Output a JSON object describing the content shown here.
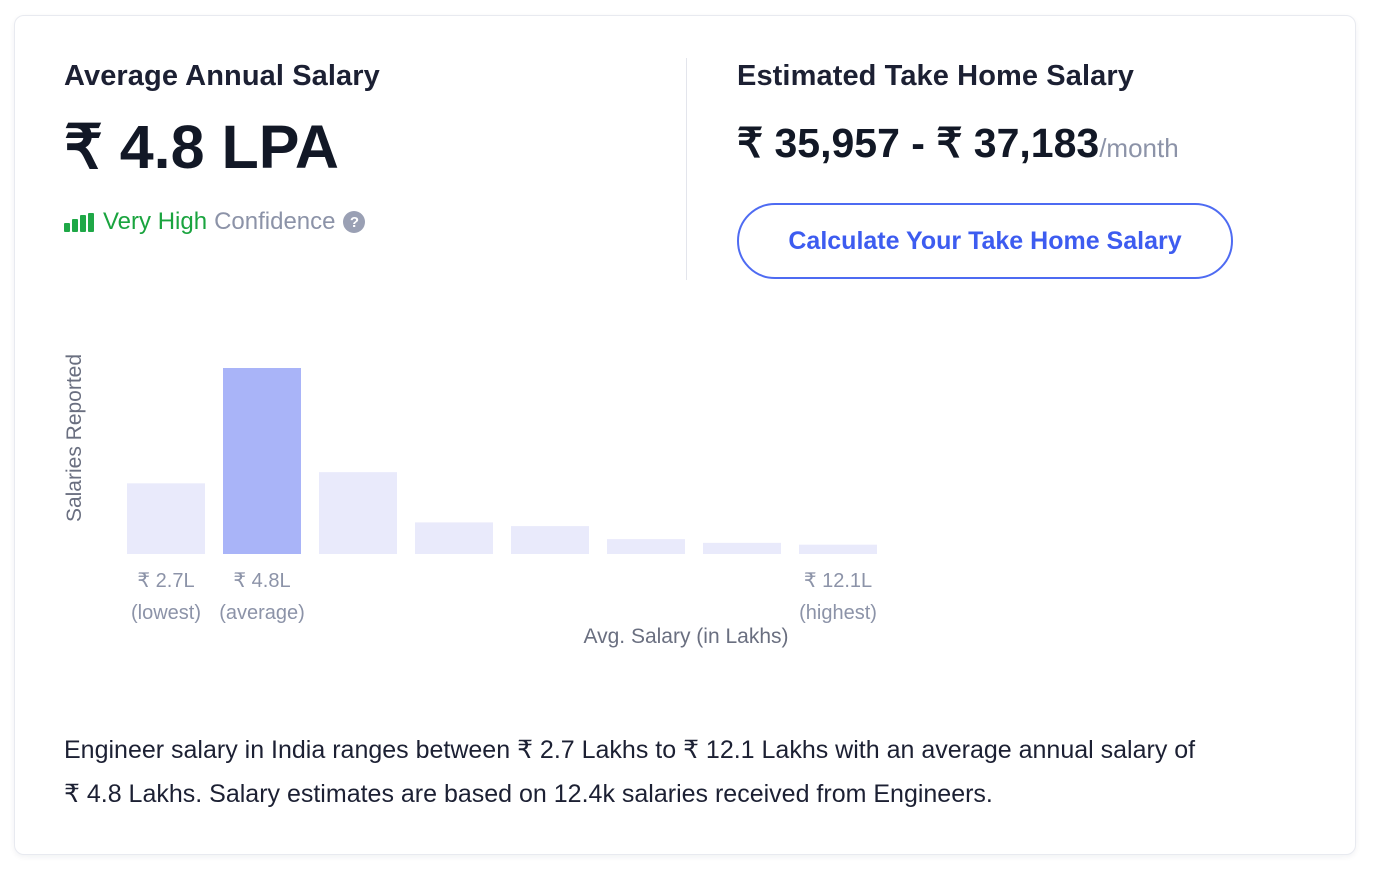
{
  "average": {
    "title": "Average Annual Salary",
    "value": "₹ 4.8 LPA",
    "confidence_level": "Very High",
    "confidence_label": "Confidence",
    "help_icon": "?"
  },
  "take_home": {
    "title": "Estimated Take Home Salary",
    "range": "₹ 35,957 - ₹ 37,183",
    "period": "/month",
    "button_label": "Calculate Your Take Home Salary"
  },
  "colors": {
    "bar_default": "#e9eafb",
    "bar_highlight": "#a9b4f8",
    "confidence_green": "#1aa43f",
    "accent_blue": "#3d5cf0"
  },
  "chart_data": {
    "type": "bar",
    "ylabel": "Salaries Reported",
    "xlabel": "Avg. Salary (in Lakhs)",
    "values": [
      38,
      100,
      44,
      17,
      15,
      8,
      6,
      5
    ],
    "highlight_index": 1,
    "tick_labels": [
      {
        "index": 0,
        "value": "₹ 2.7L",
        "note": "(lowest)"
      },
      {
        "index": 1,
        "value": "₹ 4.8L",
        "note": "(average)"
      },
      {
        "index": 7,
        "value": "₹ 12.1L",
        "note": "(highest)"
      }
    ]
  },
  "summary": {
    "line1": "Engineer salary in India ranges between ₹ 2.7 Lakhs to ₹ 12.1 Lakhs with an average annual salary of",
    "line2": "₹ 4.8 Lakhs. Salary estimates are based on 12.4k salaries received from Engineers."
  }
}
